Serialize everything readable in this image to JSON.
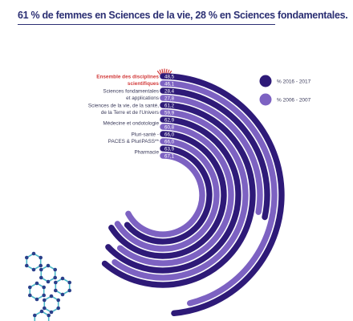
{
  "subtitle": "61 % de femmes en Sciences de la vie, 28 % en Sciences fondamentales.",
  "colors": {
    "series_2016": "#2e1a78",
    "series_2006": "#7d62c2",
    "highlight": "#d23a3a",
    "label": "#3a3a5a"
  },
  "chart_data": {
    "type": "radial-bar",
    "title": "",
    "value_max": 100,
    "categories": [
      "Ensemble des disciplines scientifiques",
      "Sciences fondamentales et applications",
      "Sciences de la vie, de la santé, de la Terre et de l'Univers",
      "Médecine et ondotologie",
      "Pluri-santé - PACES & PluriPASS**",
      "Pharmacie"
    ],
    "category_lines": [
      [
        "Ensemble des disciplines",
        "scientifiques"
      ],
      [
        "Sciences fondamentales",
        "et applications"
      ],
      [
        "Sciences de la vie, de la santé,",
        "de la Terre et de l'Univers"
      ],
      [
        "Médecine et ondotologie"
      ],
      [
        "Pluri-santé -",
        "PACES & PluriPASS**"
      ],
      [
        "Pharmacie"
      ]
    ],
    "highlight_category": 0,
    "series": [
      {
        "name": "% 2016 - 2017",
        "values": [
          48.5,
          28.4,
          61.2,
          62.9,
          66.0,
          63.9
        ],
        "labels": [
          "48,5",
          "28,4",
          "61,2",
          "62,9",
          "66,0",
          "63,9"
        ]
      },
      {
        "name": "% 2006 - 2007",
        "values": [
          46.1,
          27.8,
          59.9,
          60.8,
          66.0,
          67.1
        ],
        "labels": [
          "46,1",
          "27,8",
          "59,9",
          "60,8",
          "66,0",
          "67,1"
        ]
      }
    ],
    "legend_position": "right"
  }
}
